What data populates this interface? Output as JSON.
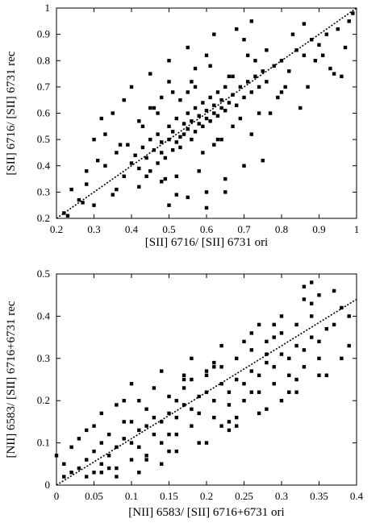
{
  "chart_data": [
    {
      "type": "scatter",
      "xlabel": "[SII] 6716/ [SII] 6731 ori",
      "ylabel": "[SII] 6716/ [SII] 6731 rec",
      "xlim": [
        0.2,
        1.0
      ],
      "ylim": [
        0.2,
        1.0
      ],
      "xticks": [
        "0.2",
        "0.3",
        "0.4",
        "0.5",
        "0.6",
        "0.7",
        "0.8",
        "0.9",
        "1"
      ],
      "yticks": [
        "0.2",
        "0.3",
        "0.4",
        "0.5",
        "0.6",
        "0.7",
        "0.8",
        "0.9",
        "1"
      ],
      "grid": false,
      "reference_line": {
        "style": "dotted",
        "from": [
          0.2,
          0.2
        ],
        "to": [
          1.0,
          1.0
        ]
      },
      "points_note": "dense cloud of ~2000 points centred near (0.58, 0.55); representative sample listed",
      "series": [
        {
          "marker": "filled-square",
          "color": "#000000",
          "x": [
            0.22,
            0.24,
            0.26,
            0.28,
            0.3,
            0.31,
            0.33,
            0.35,
            0.36,
            0.38,
            0.39,
            0.4,
            0.41,
            0.42,
            0.43,
            0.44,
            0.45,
            0.45,
            0.46,
            0.47,
            0.47,
            0.48,
            0.48,
            0.49,
            0.5,
            0.5,
            0.51,
            0.51,
            0.52,
            0.52,
            0.53,
            0.53,
            0.54,
            0.54,
            0.55,
            0.55,
            0.56,
            0.56,
            0.57,
            0.57,
            0.58,
            0.58,
            0.59,
            0.59,
            0.6,
            0.6,
            0.61,
            0.61,
            0.62,
            0.62,
            0.63,
            0.63,
            0.64,
            0.64,
            0.65,
            0.65,
            0.66,
            0.67,
            0.68,
            0.69,
            0.7,
            0.71,
            0.72,
            0.73,
            0.74,
            0.75,
            0.76,
            0.78,
            0.8,
            0.82,
            0.84,
            0.86,
            0.88,
            0.9,
            0.92,
            0.95,
            0.98,
            0.35,
            0.4,
            0.42,
            0.45,
            0.48,
            0.5,
            0.52,
            0.55,
            0.58,
            0.6,
            0.62,
            0.65,
            0.68,
            0.7,
            0.72,
            0.75,
            0.5,
            0.55,
            0.6,
            0.65,
            0.7,
            0.45,
            0.5,
            0.55,
            0.6,
            0.3,
            0.32,
            0.38,
            0.43,
            0.47,
            0.53,
            0.57,
            0.63,
            0.67,
            0.73,
            0.77,
            0.83,
            0.87,
            0.94,
            0.97,
            0.28,
            0.33,
            0.37,
            0.42,
            0.46,
            0.49,
            0.51,
            0.56,
            0.59,
            0.61,
            0.64,
            0.66,
            0.69,
            0.71,
            0.74,
            0.79,
            0.81,
            0.85,
            0.89,
            0.93,
            0.23,
            0.27,
            0.36,
            0.44,
            0.48,
            0.52,
            0.57,
            0.62,
            0.67,
            0.72,
            0.76,
            0.8,
            0.86,
            0.91,
            0.96,
            0.99
          ],
          "y": [
            0.22,
            0.31,
            0.27,
            0.38,
            0.25,
            0.42,
            0.4,
            0.29,
            0.45,
            0.36,
            0.48,
            0.41,
            0.44,
            0.39,
            0.47,
            0.43,
            0.5,
            0.38,
            0.46,
            0.41,
            0.52,
            0.45,
            0.49,
            0.43,
            0.5,
            0.55,
            0.46,
            0.53,
            0.49,
            0.58,
            0.51,
            0.47,
            0.56,
            0.52,
            0.54,
            0.6,
            0.5,
            0.57,
            0.53,
            0.62,
            0.56,
            0.59,
            0.55,
            0.64,
            0.58,
            0.61,
            0.57,
            0.66,
            0.6,
            0.63,
            0.59,
            0.68,
            0.62,
            0.65,
            0.61,
            0.7,
            0.64,
            0.67,
            0.63,
            0.7,
            0.66,
            0.72,
            0.68,
            0.74,
            0.7,
            0.76,
            0.72,
            0.78,
            0.8,
            0.76,
            0.84,
            0.82,
            0.88,
            0.86,
            0.9,
            0.92,
            0.95,
            0.6,
            0.7,
            0.32,
            0.75,
            0.34,
            0.8,
            0.36,
            0.85,
            0.38,
            0.3,
            0.9,
            0.35,
            0.92,
            0.4,
            0.95,
            0.42,
            0.72,
            0.28,
            0.82,
            0.3,
            0.88,
            0.62,
            0.25,
            0.68,
            0.24,
            0.5,
            0.58,
            0.65,
            0.55,
            0.6,
            0.65,
            0.7,
            0.5,
            0.55,
            0.8,
            0.6,
            0.9,
            0.7,
            0.75,
            0.85,
            0.33,
            0.52,
            0.48,
            0.57,
            0.62,
            0.35,
            0.68,
            0.72,
            0.45,
            0.78,
            0.5,
            0.74,
            0.58,
            0.82,
            0.6,
            0.66,
            0.7,
            0.62,
            0.8,
            0.77,
            0.21,
            0.26,
            0.31,
            0.36,
            0.66,
            0.29,
            0.77,
            0.48,
            0.74,
            0.52,
            0.84,
            0.68,
            0.94,
            0.82,
            0.74,
            0.98
          ]
        }
      ]
    },
    {
      "type": "scatter",
      "xlabel": "[NII] 6583/ [SII] 6716+6731 ori",
      "ylabel": "[NII] 6583/ [SII] 6716+6731 rec",
      "xlim": [
        0.0,
        0.4
      ],
      "ylim": [
        0.0,
        0.5
      ],
      "xticks": [
        "0",
        "0.05",
        "0.1",
        "0.15",
        "0.2",
        "0.25",
        "0.3",
        "0.35",
        "0.4"
      ],
      "yticks": [
        "0",
        "0.1",
        "0.2",
        "0.3",
        "0.4",
        "0.5"
      ],
      "grid": false,
      "reference_line": {
        "style": "dotted",
        "from": [
          0.0,
          0.0
        ],
        "to": [
          0.4,
          0.44
        ]
      },
      "points_note": "dense cloud of ~2000 points along the diagonal; representative sample listed",
      "series": [
        {
          "marker": "filled-square",
          "color": "#000000",
          "x": [
            0.0,
            0.01,
            0.02,
            0.03,
            0.04,
            0.04,
            0.05,
            0.05,
            0.06,
            0.06,
            0.07,
            0.07,
            0.08,
            0.08,
            0.09,
            0.09,
            0.1,
            0.1,
            0.11,
            0.11,
            0.12,
            0.12,
            0.13,
            0.13,
            0.14,
            0.14,
            0.15,
            0.15,
            0.16,
            0.16,
            0.17,
            0.17,
            0.18,
            0.18,
            0.19,
            0.19,
            0.2,
            0.2,
            0.21,
            0.21,
            0.22,
            0.22,
            0.23,
            0.23,
            0.24,
            0.24,
            0.25,
            0.25,
            0.26,
            0.26,
            0.27,
            0.27,
            0.28,
            0.28,
            0.29,
            0.29,
            0.3,
            0.3,
            0.31,
            0.31,
            0.32,
            0.32,
            0.33,
            0.33,
            0.34,
            0.34,
            0.35,
            0.35,
            0.36,
            0.37,
            0.38,
            0.39,
            0.03,
            0.05,
            0.08,
            0.1,
            0.12,
            0.14,
            0.16,
            0.18,
            0.2,
            0.22,
            0.24,
            0.26,
            0.28,
            0.3,
            0.32,
            0.34,
            0.36,
            0.02,
            0.06,
            0.09,
            0.11,
            0.13,
            0.15,
            0.17,
            0.19,
            0.21,
            0.23,
            0.25,
            0.27,
            0.29,
            0.31,
            0.33,
            0.35,
            0.37,
            0.39,
            0.04,
            0.07,
            0.12,
            0.15,
            0.18,
            0.21,
            0.24,
            0.27,
            0.3,
            0.33,
            0.01,
            0.08,
            0.1,
            0.14,
            0.16,
            0.2,
            0.22,
            0.26,
            0.28,
            0.32,
            0.34,
            0.38,
            0.06,
            0.11,
            0.17,
            0.23,
            0.29,
            0.35
          ],
          "y": [
            0.07,
            0.05,
            0.03,
            0.04,
            0.06,
            0.02,
            0.08,
            0.03,
            0.1,
            0.05,
            0.07,
            0.12,
            0.09,
            0.04,
            0.11,
            0.15,
            0.1,
            0.06,
            0.13,
            0.09,
            0.14,
            0.18,
            0.12,
            0.16,
            0.15,
            0.1,
            0.17,
            0.21,
            0.16,
            0.12,
            0.19,
            0.23,
            0.18,
            0.14,
            0.21,
            0.17,
            0.22,
            0.26,
            0.2,
            0.16,
            0.24,
            0.28,
            0.22,
            0.19,
            0.25,
            0.3,
            0.24,
            0.2,
            0.27,
            0.32,
            0.26,
            0.22,
            0.29,
            0.34,
            0.28,
            0.24,
            0.31,
            0.36,
            0.3,
            0.26,
            0.33,
            0.38,
            0.32,
            0.28,
            0.35,
            0.4,
            0.34,
            0.3,
            0.37,
            0.38,
            0.42,
            0.4,
            0.11,
            0.14,
            0.02,
            0.24,
            0.06,
            0.27,
            0.08,
            0.3,
            0.1,
            0.33,
            0.14,
            0.36,
            0.18,
            0.4,
            0.22,
            0.43,
            0.26,
            0.09,
            0.17,
            0.2,
            0.03,
            0.23,
            0.08,
            0.26,
            0.1,
            0.29,
            0.13,
            0.34,
            0.17,
            0.38,
            0.22,
            0.44,
            0.26,
            0.46,
            0.33,
            0.13,
            0.04,
            0.07,
            0.12,
            0.25,
            0.28,
            0.16,
            0.38,
            0.2,
            0.47,
            0.02,
            0.19,
            0.15,
            0.05,
            0.2,
            0.27,
            0.14,
            0.22,
            0.31,
            0.25,
            0.48,
            0.3,
            0.03,
            0.2,
            0.25,
            0.15,
            0.35,
            0.45
          ]
        }
      ]
    }
  ]
}
